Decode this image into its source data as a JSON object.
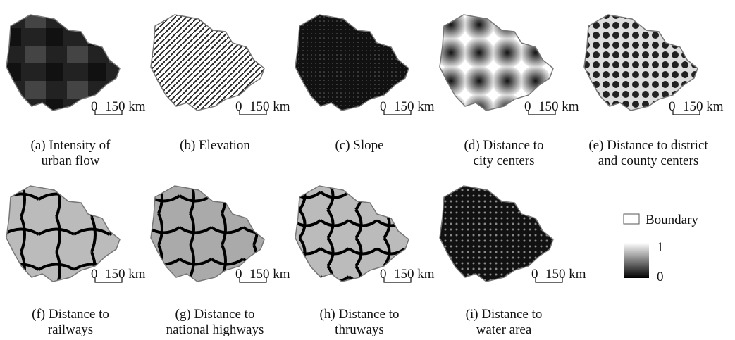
{
  "panels": [
    {
      "caption": [
        "(a) Intensity of",
        "urban flow"
      ],
      "scale_bar": {
        "start": "0",
        "end": "150 km"
      }
    },
    {
      "caption": [
        "(b) Elevation"
      ],
      "scale_bar": {
        "start": "0",
        "end": "150 km"
      }
    },
    {
      "caption": [
        "(c) Slope"
      ],
      "scale_bar": {
        "start": "0",
        "end": "150 km"
      }
    },
    {
      "caption": [
        "(d) Distance to",
        "city centers"
      ],
      "scale_bar": {
        "start": "0",
        "end": "150 km"
      }
    },
    {
      "caption": [
        "(e) Distance to district",
        "and county centers"
      ],
      "scale_bar": {
        "start": "0",
        "end": "150 km"
      }
    },
    {
      "caption": [
        "(f) Distance to",
        "railways"
      ],
      "scale_bar": {
        "start": "0",
        "end": "150 km"
      }
    },
    {
      "caption": [
        "(g) Distance to",
        "national highways"
      ],
      "scale_bar": {
        "start": "0",
        "end": "150 km"
      }
    },
    {
      "caption": [
        "(h) Distance to",
        "thruways"
      ],
      "scale_bar": {
        "start": "0",
        "end": "150 km"
      }
    },
    {
      "caption": [
        "(i) Distance to",
        "water area"
      ],
      "scale_bar": {
        "start": "0",
        "end": "150 km"
      }
    }
  ],
  "legend": {
    "boundary": "Boundary",
    "max": 1,
    "min": 0
  }
}
